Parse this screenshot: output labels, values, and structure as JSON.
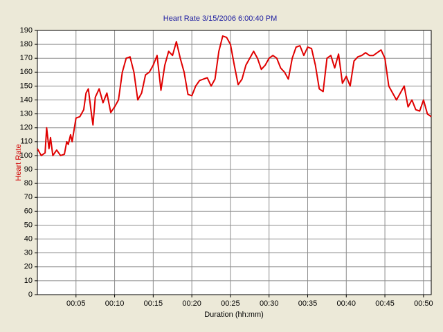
{
  "chart_data": {
    "type": "line",
    "title": "Heart Rate 3/15/2006 6:00:40 PM",
    "x_label": "Duration (hh:mm)",
    "y_label": "Heart Rate",
    "x": [
      0,
      0.5,
      1,
      1.2,
      1.5,
      1.7,
      2,
      2.5,
      3,
      3.5,
      3.8,
      4,
      4.3,
      4.5,
      5,
      5.5,
      6,
      6.3,
      6.6,
      7,
      7.2,
      7.5,
      8,
      8.5,
      9,
      9.5,
      10,
      10.5,
      11,
      11.5,
      12,
      12.5,
      13,
      13.5,
      14,
      14.5,
      15,
      15.5,
      16,
      16.5,
      17,
      17.5,
      18,
      18.5,
      19,
      19.5,
      20,
      20.5,
      21,
      22,
      22.5,
      23,
      23.5,
      24,
      24.5,
      25,
      25.5,
      26,
      26.5,
      27,
      27.5,
      28,
      28.5,
      29,
      29.5,
      30,
      30.5,
      31,
      31.5,
      32,
      32.5,
      33,
      33.5,
      34,
      34.5,
      35,
      35.5,
      36,
      36.5,
      37,
      37.5,
      38,
      38.5,
      39,
      39.5,
      40,
      40.5,
      41,
      41.5,
      42,
      42.5,
      43,
      43.5,
      44,
      44.5,
      45,
      45.5,
      46,
      46.5,
      47,
      47.5,
      48,
      48.5,
      49,
      49.5,
      50,
      50.5,
      51
    ],
    "series": [
      {
        "name": "Heart Rate",
        "color": "#e00000",
        "values": [
          105,
          100,
          102,
          120,
          105,
          113,
          100,
          104,
          100,
          101,
          110,
          108,
          115,
          110,
          127,
          128,
          133,
          145,
          148,
          130,
          122,
          142,
          148,
          138,
          145,
          131,
          135,
          140,
          160,
          170,
          171,
          160,
          140,
          145,
          158,
          160,
          165,
          172,
          147,
          165,
          175,
          172,
          182,
          170,
          160,
          144,
          143,
          150,
          154,
          156,
          150,
          155,
          175,
          186,
          185,
          180,
          165,
          151,
          155,
          165,
          170,
          175,
          170,
          162,
          165,
          170,
          172,
          170,
          163,
          160,
          155,
          170,
          178,
          179,
          172,
          178,
          177,
          165,
          148,
          146,
          170,
          172,
          163,
          173,
          152,
          157,
          150,
          168,
          171,
          172,
          174,
          172,
          172,
          174,
          176,
          170,
          150,
          145,
          140,
          145,
          150,
          135,
          140,
          133,
          132,
          140,
          130,
          128
        ]
      }
    ],
    "xlim": [
      0,
      51
    ],
    "ylim": [
      0,
      190
    ],
    "xticks": [
      {
        "value": 5,
        "label": "00:05"
      },
      {
        "value": 10,
        "label": "00:10"
      },
      {
        "value": 15,
        "label": "00:15"
      },
      {
        "value": 20,
        "label": "00:20"
      },
      {
        "value": 25,
        "label": "00:25"
      },
      {
        "value": 30,
        "label": "00:30"
      },
      {
        "value": 35,
        "label": "00:35"
      },
      {
        "value": 40,
        "label": "00:40"
      },
      {
        "value": 45,
        "label": "00:45"
      },
      {
        "value": 50,
        "label": "00:50"
      }
    ],
    "yticks": [
      0,
      10,
      20,
      30,
      40,
      50,
      60,
      70,
      80,
      90,
      100,
      110,
      120,
      130,
      140,
      150,
      160,
      170,
      180,
      190
    ],
    "grid": true
  }
}
